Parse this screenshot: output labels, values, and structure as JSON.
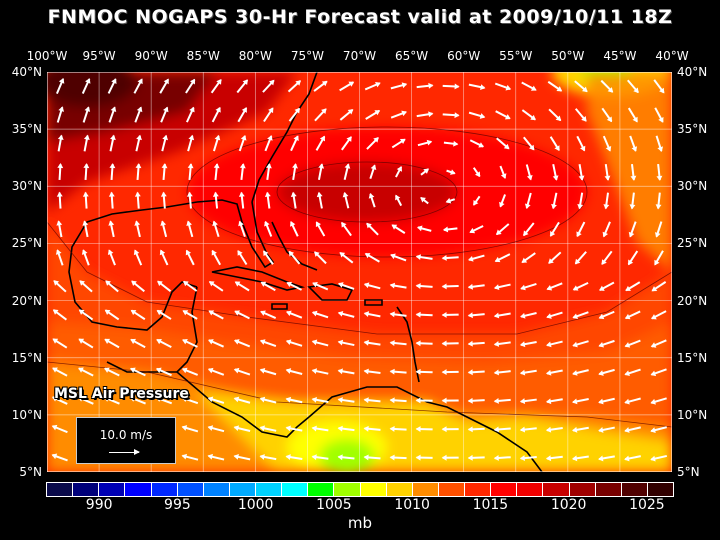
{
  "title": "FNMOC NOGAPS 30-Hr Forecast valid at 2009/10/11 18Z",
  "map": {
    "longitude_labels": [
      "100°W",
      "95°W",
      "90°W",
      "85°W",
      "80°W",
      "75°W",
      "70°W",
      "65°W",
      "60°W",
      "55°W",
      "50°W",
      "45°W",
      "40°W"
    ],
    "latitude_labels": [
      "40°N",
      "35°N",
      "30°N",
      "25°N",
      "20°N",
      "15°N",
      "10°N",
      "5°N"
    ],
    "lon_range": [
      -100,
      -40
    ],
    "lat_range": [
      5,
      40
    ],
    "field_label": "MSL Air Pressure",
    "reference_vector_label": "10.0 m/s",
    "high_pressure_center": {
      "lon": -62,
      "lat": 30
    }
  },
  "colorbar": {
    "tick_labels": [
      "990",
      "995",
      "1000",
      "1005",
      "1010",
      "1015",
      "1020",
      "1025"
    ],
    "unit": "mb",
    "colors": [
      "#0a0a4a",
      "#00007a",
      "#0000b4",
      "#0000ff",
      "#0028ff",
      "#0050ff",
      "#0082ff",
      "#00aaff",
      "#00d2ff",
      "#00ffff",
      "#00ff00",
      "#a0ff00",
      "#ffff00",
      "#ffd200",
      "#ff8c00",
      "#ff5000",
      "#ff2800",
      "#ff0000",
      "#f00000",
      "#c80000",
      "#a00000",
      "#780000",
      "#500000",
      "#300000"
    ]
  }
}
